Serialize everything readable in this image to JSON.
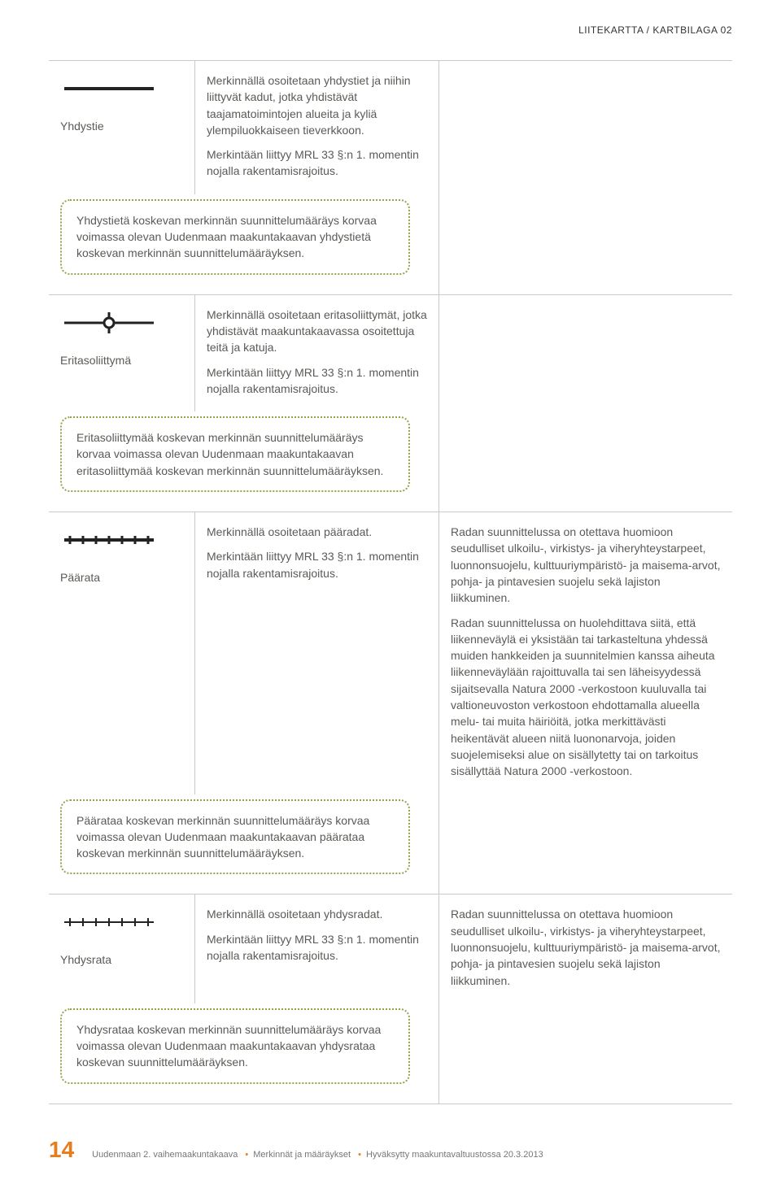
{
  "colors": {
    "border_grey": "#c9c9c9",
    "text_grey": "#5a5a56",
    "accent_green": "#8fa64a",
    "accent_orange": "#e87c1d",
    "black": "#222222",
    "white": "#ffffff"
  },
  "header": {
    "right_text": "LIITEKARTTA / KARTBILAGA 02"
  },
  "sections": [
    {
      "symbol": "line-solid",
      "label": "Yhdystie",
      "description": [
        "Merkinnällä osoitetaan yhdystiet ja niihin liittyvät kadut, jotka yhdistävät taajamatoimintojen alueita ja kyliä ylempiluokkaiseen tieverkkoon.",
        "Merkintään liittyy MRL 33 §:n 1. momentin nojalla rakentamisrajoitus."
      ],
      "notes": [],
      "callout": "Yhdystietä koskevan merkinnän suunnittelumääräys korvaa voimassa olevan Uudenmaan maakuntakaavan yhdystietä koskevan merkinnän suunnittelumääräyksen."
    },
    {
      "symbol": "interchange",
      "label": "Eritasoliittymä",
      "description": [
        "Merkinnällä osoitetaan eritasoliittymät, jotka yhdistävät maakuntakaavassa osoitettuja teitä ja katuja.",
        "Merkintään liittyy MRL 33 §:n 1. momentin nojalla rakentamisrajoitus."
      ],
      "notes": [],
      "callout": "Eritasoliittymää koskevan merkinnän suunnittelumääräys korvaa voimassa olevan Uudenmaan maakuntakaavan eritasoliittymää koskevan merkinnän suunnittelumääräyksen."
    },
    {
      "symbol": "rail-main",
      "label": "Päärata",
      "description": [
        "Merkinnällä osoitetaan pääradat.",
        "Merkintään liittyy MRL 33 §:n 1. momentin nojalla rakentamisrajoitus."
      ],
      "notes": [
        "Radan suunnittelussa on otettava huomioon seudulliset ulkoilu-, virkistys- ja viheryhteystarpeet, luonnonsuojelu, kulttuuriympäristö- ja maisema-arvot, pohja- ja pintavesien suojelu sekä lajiston liikkuminen.",
        "Radan suunnittelussa on huolehdittava siitä, että liikenneväylä ei yksistään tai tarkasteltuna yhdessä muiden hankkeiden ja suunnitelmien kanssa aiheuta liikenneväylään rajoittuvalla tai sen läheisyydessä sijaitsevalla Natura 2000 -verkostoon kuuluvalla tai valtioneuvoston verkostoon ehdottamalla alueella melu- tai muita häiriöitä, jotka merkittävästi heikentävät alueen niitä luononarvoja, joiden suojelemiseksi alue on sisällytetty tai on tarkoitus sisällyttää Natura 2000 -verkostoon."
      ],
      "callout": "Päärataa koskevan merkinnän suunnittelumääräys korvaa voimassa olevan Uudenmaan maakuntakaavan päärataa koskevan merkinnän suunnittelumääräyksen."
    },
    {
      "symbol": "rail-secondary",
      "label": "Yhdysrata",
      "description": [
        "Merkinnällä osoitetaan yhdysradat.",
        "Merkintään liittyy MRL 33 §:n 1. momentin nojalla rakentamisrajoitus."
      ],
      "notes": [
        "Radan suunnittelussa on otettava huomioon seudulliset ulkoilu-, virkistys- ja viheryhteystarpeet, luonnonsuojelu, kulttuuriympäristö- ja maisema-arvot, pohja- ja pintavesien suojelu sekä lajiston liikkuminen."
      ],
      "callout": "Yhdysrataa koskevan merkinnän suunnittelumääräys korvaa voimassa olevan Uudenmaan maakuntakaavan yhdysrataa koskevan suunnittelumääräyksen."
    }
  ],
  "symbols": {
    "line-solid": {
      "stroke": "#222222",
      "stroke_width": 4
    },
    "interchange": {
      "stroke": "#222222",
      "stroke_width": 3,
      "circle_radius": 6,
      "circle_fill": "#ffffff"
    },
    "rail-main": {
      "stroke": "#222222",
      "stroke_width": 4,
      "tick_height": 10,
      "tick_count": 7,
      "tick_width": 3
    },
    "rail-secondary": {
      "stroke": "#222222",
      "stroke_width": 2,
      "tick_height": 10,
      "tick_count": 7,
      "tick_width": 2
    }
  },
  "footer": {
    "page_number": "14",
    "parts": [
      "Uudenmaan 2. vaihemaakuntakaava",
      "Merkinnät ja määräykset",
      "Hyväksytty maakuntavaltuustossa 20.3.2013"
    ]
  }
}
